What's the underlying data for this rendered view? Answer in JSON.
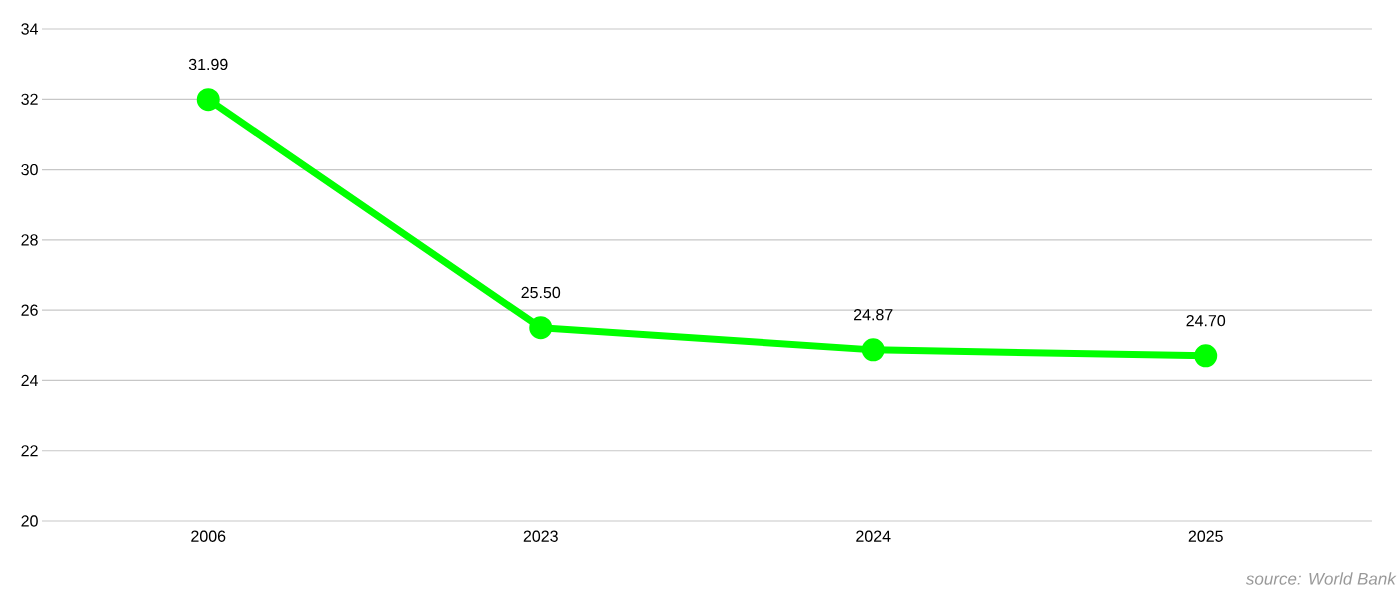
{
  "chart_data": {
    "type": "line",
    "categories": [
      "2006",
      "2023",
      "2024",
      "2025"
    ],
    "values": [
      31.99,
      25.5,
      24.87,
      24.7
    ],
    "value_labels": [
      "31.99",
      "25.50",
      "24.87",
      "24.70"
    ],
    "color": "#00ff00",
    "marker": "circle",
    "line_style": "solid",
    "ylim": [
      20,
      34
    ],
    "yticks": [
      20,
      22,
      24,
      26,
      28,
      30,
      32,
      34
    ],
    "grid": "y",
    "annotations": [
      "source: World Bank"
    ]
  }
}
